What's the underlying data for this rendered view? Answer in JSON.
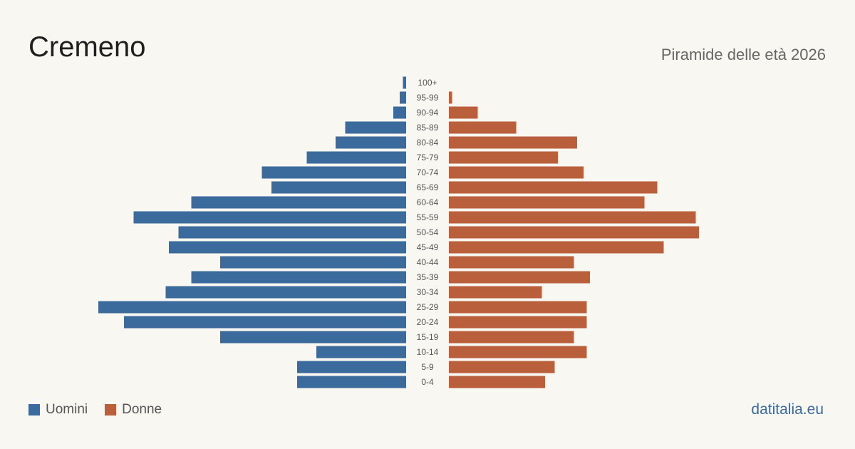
{
  "header": {
    "title": "Cremeno",
    "subtitle": "Piramide delle età 2026"
  },
  "legend": {
    "men_label": "Uomini",
    "women_label": "Donne"
  },
  "colors": {
    "men": "#3b6a9c",
    "women": "#ba5f3c",
    "background": "#f9f7f2",
    "tick_text": "#555555"
  },
  "brand": "datitalia.eu",
  "chart_data": {
    "type": "bar",
    "orientation": "horizontal-population-pyramid",
    "title": "Cremeno",
    "subtitle": "Piramide delle età 2026",
    "categories": [
      "100+",
      "95-99",
      "90-94",
      "85-89",
      "80-84",
      "75-79",
      "70-74",
      "65-69",
      "60-64",
      "55-59",
      "50-54",
      "45-49",
      "40-44",
      "35-39",
      "30-34",
      "25-29",
      "20-24",
      "15-19",
      "10-14",
      "5-9",
      "0-4"
    ],
    "series": [
      {
        "name": "Uomini",
        "side": "left",
        "values": [
          0.5,
          1,
          2,
          9.5,
          11,
          15.5,
          22.5,
          21,
          33.5,
          42.5,
          35.5,
          37,
          29,
          33.5,
          37.5,
          48,
          44,
          29,
          14,
          17,
          17
        ]
      },
      {
        "name": "Donne",
        "side": "right",
        "values": [
          0,
          0.5,
          4.5,
          10.5,
          20,
          17,
          21,
          32.5,
          30.5,
          38.5,
          39,
          33.5,
          19.5,
          22,
          14.5,
          21.5,
          21.5,
          19.5,
          21.5,
          16.5,
          15
        ]
      }
    ],
    "xlim": [
      0,
      50
    ],
    "grid": false,
    "legend_position": "bottom-left"
  }
}
